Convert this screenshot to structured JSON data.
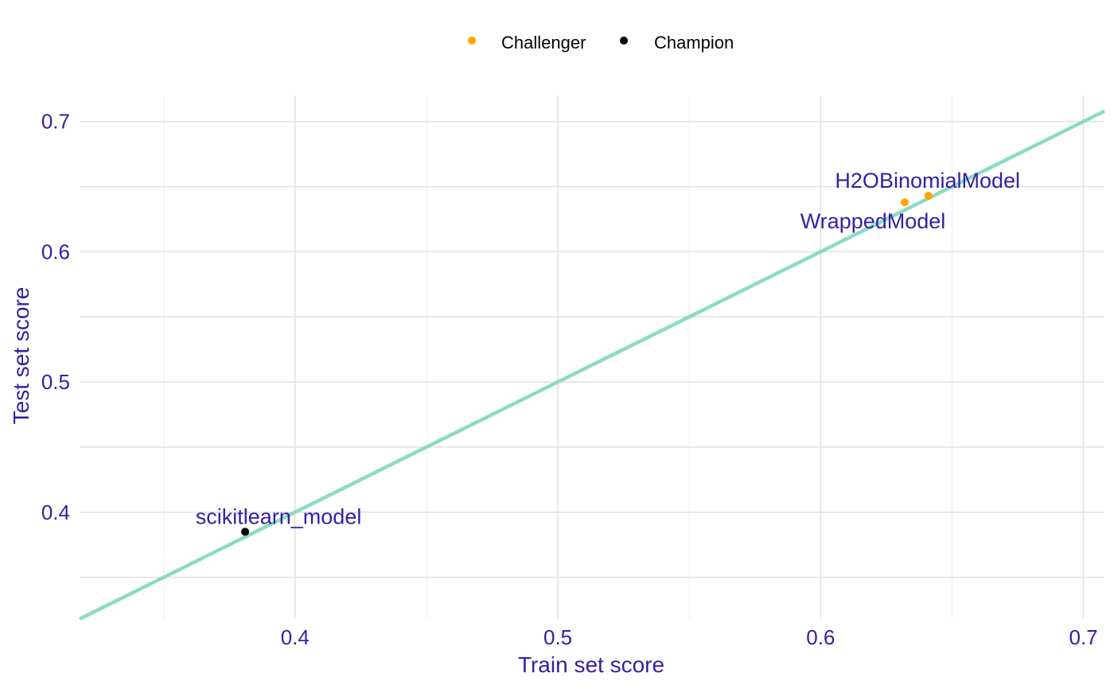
{
  "chart_data": {
    "type": "scatter",
    "title": "",
    "xlabel": "Train set score",
    "ylabel": "Test set score",
    "xlim": [
      0.318,
      0.708
    ],
    "ylim": [
      0.318,
      0.72
    ],
    "x_ticks": [
      "0.4",
      "0.5",
      "0.6",
      "0.7"
    ],
    "y_ticks": [
      "0.4",
      "0.5",
      "0.6",
      "0.7"
    ],
    "grid": true,
    "legend_position": "top",
    "reference_line": {
      "type": "identity",
      "color": "#8bdcbe"
    },
    "series": [
      {
        "name": "Challenger",
        "color": "#ffa500",
        "points": [
          {
            "x": 0.641,
            "y": 0.643,
            "label": "H2OBinomialModel"
          },
          {
            "x": 0.632,
            "y": 0.638,
            "label": "WrappedModel"
          }
        ]
      },
      {
        "name": "Champion",
        "color": "#000000",
        "points": [
          {
            "x": 0.381,
            "y": 0.385,
            "label": "scikitlearn_model"
          }
        ]
      }
    ]
  }
}
